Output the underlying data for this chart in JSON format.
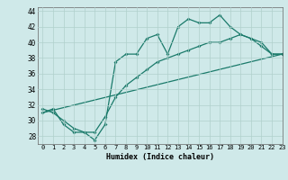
{
  "xlabel": "Humidex (Indice chaleur)",
  "xlim": [
    -0.5,
    23
  ],
  "ylim": [
    27,
    44.5
  ],
  "bg_color": "#cfe9e9",
  "grid_color": "#b0d0cc",
  "line_color": "#1a7a6a",
  "line1_x": [
    0,
    1,
    2,
    3,
    4,
    5,
    6,
    7,
    8,
    9,
    10,
    11,
    12,
    13,
    14,
    15,
    16,
    17,
    18,
    19,
    20,
    21,
    22,
    23
  ],
  "line1_y": [
    31,
    31.5,
    29.5,
    28.5,
    28.5,
    27.5,
    29.5,
    37.5,
    38.5,
    38.5,
    40.5,
    41,
    38.5,
    42,
    43,
    42.5,
    42.5,
    43.5,
    42,
    41,
    40.5,
    40,
    38.5,
    38.5
  ],
  "line2_x": [
    0,
    1,
    2,
    3,
    4,
    5,
    6,
    7,
    8,
    9,
    10,
    11,
    12,
    13,
    14,
    15,
    16,
    17,
    18,
    19,
    20,
    21,
    22,
    23
  ],
  "line2_y": [
    31.5,
    31,
    30,
    29,
    28.5,
    28.5,
    30.5,
    33,
    34.5,
    35.5,
    36.5,
    37.5,
    38,
    38.5,
    39,
    39.5,
    40,
    40,
    40.5,
    41,
    40.5,
    39.5,
    38.5,
    38.5
  ],
  "line3_x": [
    0,
    23
  ],
  "line3_y": [
    31,
    38.5
  ],
  "xticks": [
    0,
    1,
    2,
    3,
    4,
    5,
    6,
    7,
    8,
    9,
    10,
    11,
    12,
    13,
    14,
    15,
    16,
    17,
    18,
    19,
    20,
    21,
    22,
    23
  ],
  "yticks": [
    28,
    30,
    32,
    34,
    36,
    38,
    40,
    42,
    44
  ],
  "xtick_labels": [
    "0",
    "1",
    "2",
    "3",
    "4",
    "5",
    "6",
    "7",
    "8",
    "9",
    "10",
    "11",
    "12",
    "13",
    "14",
    "15",
    "16",
    "17",
    "18",
    "19",
    "20",
    "21",
    "22",
    "23"
  ],
  "ytick_labels": [
    "28",
    "30",
    "32",
    "34",
    "36",
    "38",
    "40",
    "42",
    "44"
  ]
}
